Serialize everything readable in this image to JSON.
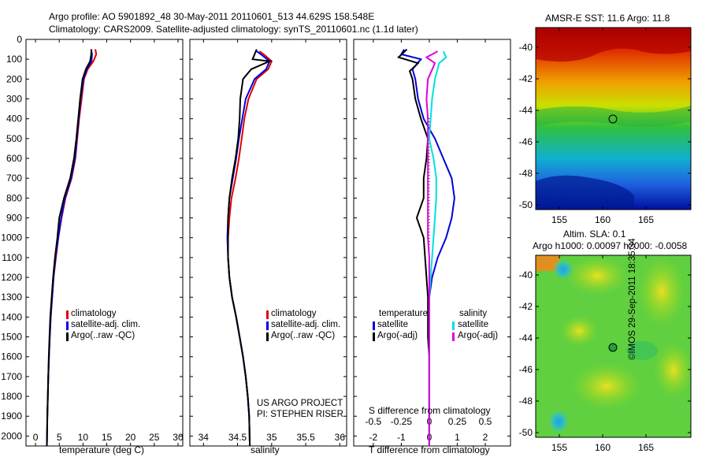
{
  "header": {
    "line1": "Argo profile: AO 5901892_48 30-May-2011 20110601_513 44.629S 158.548E",
    "line2": "Climatology: CARS2009. Satellite-adjusted climatology: synTS_20110601.nc (1.1d later)"
  },
  "colors": {
    "climatology": "#e00000",
    "satellite": "#0000e0",
    "argo": "#000000",
    "satellite_s": "#00e0e0",
    "argo_s": "#e000e0"
  },
  "legend_tc": [
    {
      "label": "climatology",
      "color": "#e00000"
    },
    {
      "label": "satellite-adj. clim.",
      "color": "#0000e0"
    },
    {
      "label": "Argo(..raw -QC)",
      "color": "#000000"
    }
  ],
  "legend_diff": {
    "temperature_title": "temperature",
    "salinity_title": "salinity",
    "items_t": [
      {
        "label": "satellite",
        "color": "#0000e0"
      },
      {
        "label": "Argo(-adj)",
        "color": "#000000"
      }
    ],
    "items_s": [
      {
        "label": "satellite",
        "color": "#00e0e0"
      },
      {
        "label": "Argo(-adj)",
        "color": "#e000e0"
      }
    ]
  },
  "credits": {
    "line1": "US ARGO PROJECT",
    "line2": "PI: STEPHEN RISER"
  },
  "map_sst": {
    "title": "AMSR-E SST: 11.6 Argo: 11.8",
    "yticks": [
      "-40",
      "-42",
      "-44",
      "-46",
      "-48",
      "-50"
    ],
    "xticks": [
      "155",
      "160",
      "165"
    ],
    "lon": 158.548,
    "lat": -44.629
  },
  "map_sla": {
    "title1": "Altim. SLA: 0.1",
    "title2": "Argo h1000: 0.00097 h2000: -0.0058",
    "yticks": [
      "-40",
      "-42",
      "-44",
      "-46",
      "-48",
      "-50"
    ],
    "xticks": [
      "155",
      "160",
      "165"
    ],
    "lon": 158.548,
    "lat": -44.629
  },
  "watermark": "©IMOS 29-Sep-2011 18:35:34",
  "chart_data": [
    {
      "type": "line",
      "xlabel": "temperature (deg C)",
      "xticks": [
        "0",
        "5",
        "10",
        "15",
        "20",
        "25",
        "30"
      ],
      "xlim": [
        -2,
        31
      ],
      "ylim": [
        0,
        2050
      ],
      "yticks": [
        "0",
        "100",
        "200",
        "300",
        "400",
        "500",
        "600",
        "700",
        "800",
        "900",
        "1000",
        "1100",
        "1200",
        "1300",
        "1400",
        "1500",
        "1600",
        "1700",
        "1800",
        "1900",
        "2000"
      ],
      "series": [
        {
          "name": "climatology",
          "color": "#e00000",
          "points": [
            [
              12.6,
              50
            ],
            [
              12.8,
              75
            ],
            [
              12.2,
              110
            ],
            [
              11.0,
              150
            ],
            [
              10.2,
              200
            ],
            [
              9.7,
              300
            ],
            [
              9.2,
              400
            ],
            [
              8.8,
              500
            ],
            [
              8.4,
              600
            ],
            [
              7.6,
              700
            ],
            [
              6.3,
              800
            ],
            [
              5.5,
              900
            ],
            [
              4.8,
              1000
            ],
            [
              4.3,
              1100
            ],
            [
              3.8,
              1200
            ],
            [
              3.5,
              1300
            ],
            [
              3.2,
              1400
            ],
            [
              3.0,
              1500
            ],
            [
              2.85,
              1600
            ],
            [
              2.7,
              1700
            ],
            [
              2.6,
              1800
            ],
            [
              2.5,
              1900
            ],
            [
              2.4,
              2050
            ]
          ]
        },
        {
          "name": "satellite-adj. clim.",
          "color": "#0000e0",
          "points": [
            [
              11.7,
              50
            ],
            [
              11.9,
              75
            ],
            [
              11.8,
              110
            ],
            [
              10.8,
              150
            ],
            [
              10.1,
              200
            ],
            [
              9.5,
              300
            ],
            [
              9.1,
              400
            ],
            [
              8.7,
              500
            ],
            [
              8.3,
              600
            ],
            [
              7.5,
              700
            ],
            [
              6.2,
              800
            ],
            [
              5.4,
              900
            ],
            [
              4.8,
              1000
            ],
            [
              4.2,
              1100
            ],
            [
              3.8,
              1200
            ],
            [
              3.5,
              1300
            ],
            [
              3.2,
              1400
            ],
            [
              3.0,
              1500
            ],
            [
              2.85,
              1600
            ],
            [
              2.7,
              1700
            ],
            [
              2.6,
              1800
            ],
            [
              2.5,
              1900
            ],
            [
              2.4,
              2050
            ]
          ]
        },
        {
          "name": "Argo(..raw -QC)",
          "color": "#000000",
          "points": [
            [
              11.8,
              50
            ],
            [
              11.7,
              80
            ],
            [
              11.5,
              110
            ],
            [
              10.6,
              150
            ],
            [
              9.9,
              200
            ],
            [
              9.4,
              300
            ],
            [
              9.0,
              400
            ],
            [
              8.6,
              500
            ],
            [
              8.1,
              600
            ],
            [
              7.3,
              700
            ],
            [
              6.0,
              800
            ],
            [
              5.0,
              900
            ],
            [
              4.6,
              1000
            ],
            [
              4.1,
              1100
            ],
            [
              3.7,
              1200
            ],
            [
              3.4,
              1300
            ],
            [
              3.1,
              1400
            ],
            [
              2.95,
              1500
            ],
            [
              2.8,
              1600
            ],
            [
              2.7,
              1700
            ],
            [
              2.6,
              1800
            ],
            [
              2.5,
              1900
            ],
            [
              2.4,
              2050
            ]
          ]
        }
      ]
    },
    {
      "type": "line",
      "xlabel": "salinity",
      "xticks": [
        "34",
        "34.5",
        "35",
        "35.5",
        "36"
      ],
      "xlim": [
        33.8,
        36.1
      ],
      "ylim": [
        0,
        2050
      ],
      "series": [
        {
          "name": "climatology",
          "color": "#e00000",
          "points": [
            [
              34.82,
              60
            ],
            [
              34.9,
              80
            ],
            [
              35.0,
              110
            ],
            [
              34.95,
              150
            ],
            [
              34.78,
              200
            ],
            [
              34.66,
              300
            ],
            [
              34.6,
              400
            ],
            [
              34.56,
              500
            ],
            [
              34.52,
              600
            ],
            [
              34.47,
              700
            ],
            [
              34.41,
              800
            ],
            [
              34.38,
              900
            ],
            [
              34.36,
              1000
            ],
            [
              34.36,
              1100
            ],
            [
              34.38,
              1200
            ],
            [
              34.42,
              1300
            ],
            [
              34.48,
              1400
            ],
            [
              34.53,
              1500
            ],
            [
              34.58,
              1600
            ],
            [
              34.62,
              1700
            ],
            [
              34.65,
              1800
            ],
            [
              34.67,
              1900
            ],
            [
              34.68,
              2050
            ]
          ]
        },
        {
          "name": "satellite-adj. clim.",
          "color": "#0000e0",
          "points": [
            [
              34.78,
              60
            ],
            [
              34.86,
              80
            ],
            [
              34.97,
              110
            ],
            [
              34.92,
              150
            ],
            [
              34.75,
              200
            ],
            [
              34.62,
              300
            ],
            [
              34.57,
              400
            ],
            [
              34.52,
              500
            ],
            [
              34.48,
              600
            ],
            [
              34.43,
              700
            ],
            [
              34.38,
              800
            ],
            [
              34.36,
              900
            ],
            [
              34.35,
              1000
            ],
            [
              34.36,
              1100
            ],
            [
              34.38,
              1200
            ],
            [
              34.42,
              1300
            ],
            [
              34.48,
              1400
            ],
            [
              34.53,
              1500
            ],
            [
              34.58,
              1600
            ],
            [
              34.62,
              1700
            ],
            [
              34.65,
              1800
            ],
            [
              34.67,
              1900
            ],
            [
              34.68,
              2050
            ]
          ]
        },
        {
          "name": "Argo(..raw -QC)",
          "color": "#000000",
          "points": [
            [
              34.78,
              50
            ],
            [
              34.72,
              100
            ],
            [
              34.97,
              110
            ],
            [
              34.7,
              150
            ],
            [
              34.58,
              200
            ],
            [
              34.54,
              300
            ],
            [
              34.53,
              400
            ],
            [
              34.51,
              500
            ],
            [
              34.47,
              600
            ],
            [
              34.42,
              700
            ],
            [
              34.38,
              800
            ],
            [
              34.36,
              900
            ],
            [
              34.36,
              1000
            ],
            [
              34.36,
              1100
            ],
            [
              34.38,
              1200
            ],
            [
              34.42,
              1300
            ],
            [
              34.48,
              1400
            ],
            [
              34.53,
              1500
            ],
            [
              34.58,
              1600
            ],
            [
              34.62,
              1700
            ],
            [
              34.65,
              1800
            ],
            [
              34.67,
              1900
            ],
            [
              34.68,
              2050
            ]
          ]
        }
      ]
    },
    {
      "type": "line",
      "xlabel": "T difference from climatology",
      "xlabel2": "S difference from climatology",
      "xticks": [
        "-2",
        "-1",
        "0",
        "1",
        "2"
      ],
      "xticks2": [
        "-0.5",
        "-0.25",
        "0",
        "0.25",
        "0.5"
      ],
      "xlim": [
        -2.7,
        2.9
      ],
      "ylim": [
        0,
        2050
      ],
      "series": [
        {
          "name": "temperature satellite",
          "color": "#0000e0",
          "points": [
            [
              -0.9,
              50
            ],
            [
              -1.0,
              75
            ],
            [
              -0.3,
              100
            ],
            [
              -0.6,
              150
            ],
            [
              -0.5,
              200
            ],
            [
              -0.4,
              300
            ],
            [
              -0.2,
              400
            ],
            [
              0.2,
              500
            ],
            [
              0.5,
              600
            ],
            [
              0.8,
              700
            ],
            [
              0.9,
              800
            ],
            [
              0.8,
              900
            ],
            [
              0.6,
              1000
            ],
            [
              0.3,
              1100
            ],
            [
              0.1,
              1200
            ],
            [
              0.0,
              1300
            ],
            [
              0.0,
              1400
            ],
            [
              0.0,
              1500
            ],
            [
              0.0,
              1600
            ],
            [
              0.0,
              1700
            ],
            [
              0.0,
              1800
            ],
            [
              0.0,
              1900
            ],
            [
              0.0,
              2050
            ]
          ]
        },
        {
          "name": "temperature Argo(-adj)",
          "color": "#000000",
          "points": [
            [
              -0.8,
              50
            ],
            [
              -1.1,
              90
            ],
            [
              -0.4,
              120
            ],
            [
              -0.7,
              160
            ],
            [
              -0.6,
              200
            ],
            [
              -0.5,
              300
            ],
            [
              -0.3,
              400
            ],
            [
              -0.05,
              500
            ],
            [
              -0.1,
              600
            ],
            [
              -0.2,
              700
            ],
            [
              -0.2,
              800
            ],
            [
              -0.45,
              900
            ],
            [
              -0.2,
              1000
            ],
            [
              -0.15,
              1100
            ],
            [
              -0.1,
              1200
            ],
            [
              -0.05,
              1300
            ],
            [
              -0.05,
              1400
            ],
            [
              -0.05,
              1500
            ],
            [
              0.0,
              1600
            ],
            [
              0.0,
              1700
            ],
            [
              0.0,
              1800
            ],
            [
              0.0,
              1900
            ],
            [
              0.0,
              2050
            ]
          ]
        },
        {
          "name": "salinity satellite",
          "color": "#00e0e0",
          "points": [
            [
              0.5,
              60
            ],
            [
              0.6,
              90
            ],
            [
              0.35,
              120
            ],
            [
              0.2,
              200
            ],
            [
              0.1,
              300
            ],
            [
              0.05,
              400
            ],
            [
              0.0,
              500
            ],
            [
              0.15,
              600
            ],
            [
              0.25,
              700
            ],
            [
              0.25,
              800
            ],
            [
              0.2,
              900
            ],
            [
              0.15,
              1000
            ],
            [
              0.1,
              1100
            ],
            [
              0.05,
              1200
            ],
            [
              0.0,
              1300
            ],
            [
              0.0,
              1400
            ],
            [
              0.0,
              1500
            ],
            [
              0.0,
              1600
            ],
            [
              0.0,
              1700
            ],
            [
              0.0,
              1800
            ],
            [
              0.0,
              1900
            ],
            [
              0.0,
              2050
            ]
          ]
        },
        {
          "name": "salinity Argo(-adj)",
          "color": "#e000e0",
          "points": [
            [
              0.3,
              60
            ],
            [
              -0.1,
              90
            ],
            [
              0.2,
              120
            ],
            [
              -0.05,
              200
            ],
            [
              -0.1,
              300
            ],
            [
              -0.05,
              400
            ],
            [
              -0.05,
              500
            ],
            [
              -0.05,
              600
            ],
            [
              -0.05,
              700
            ],
            [
              -0.05,
              800
            ],
            [
              -0.05,
              900
            ],
            [
              -0.05,
              1000
            ],
            [
              0.0,
              1100
            ],
            [
              0.0,
              1200
            ],
            [
              0.0,
              1300
            ],
            [
              0.0,
              1400
            ],
            [
              0.0,
              1500
            ],
            [
              0.0,
              1600
            ],
            [
              0.0,
              1700
            ],
            [
              0.0,
              1800
            ],
            [
              0.0,
              1900
            ],
            [
              0.0,
              2050
            ]
          ]
        }
      ]
    }
  ]
}
